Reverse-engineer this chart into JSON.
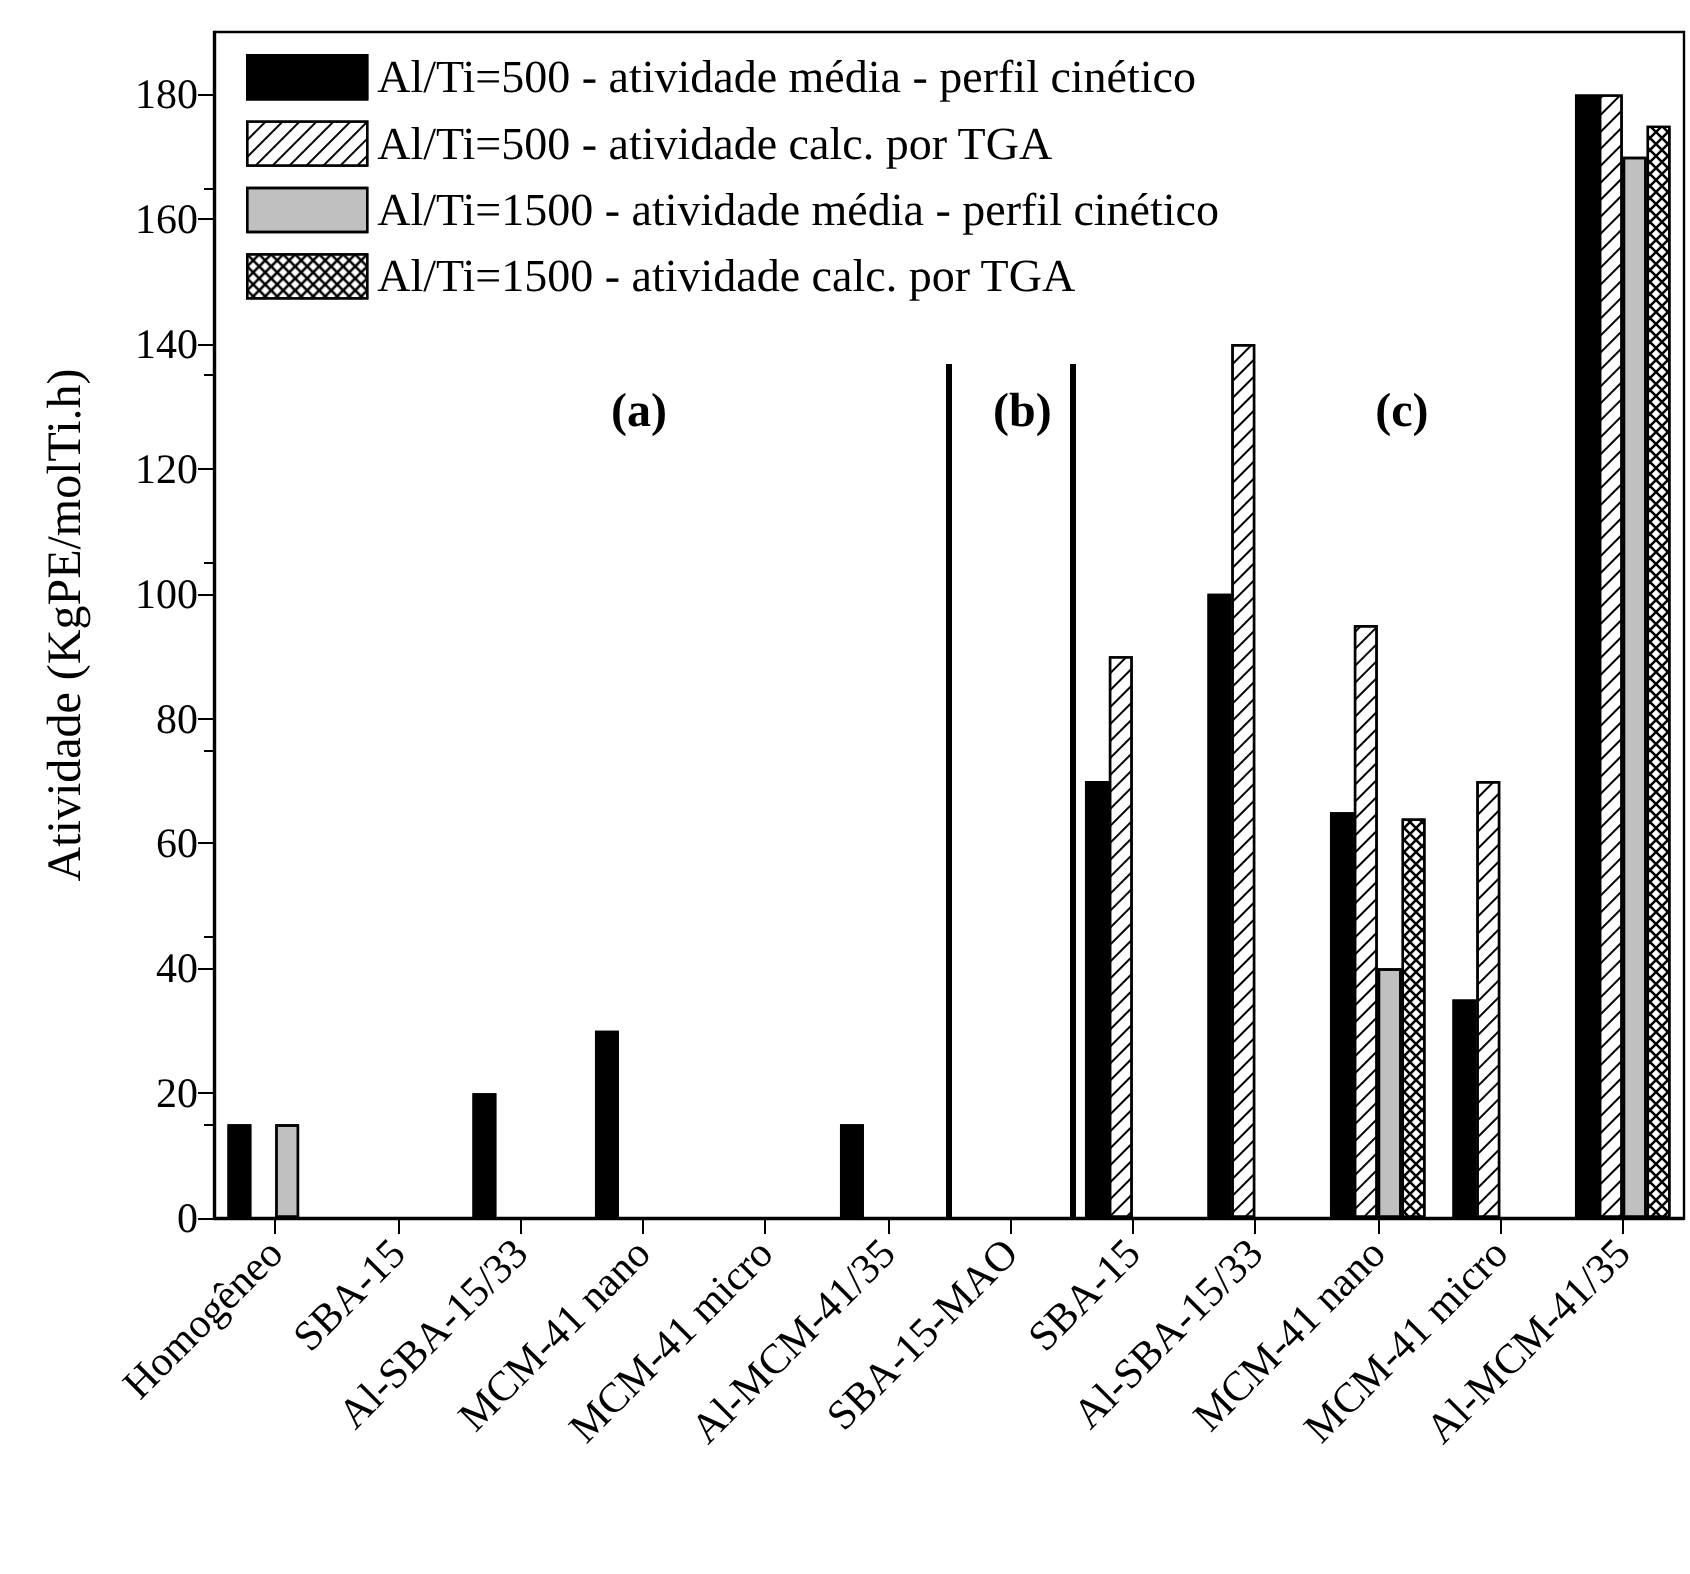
{
  "chart_data": {
    "type": "bar",
    "ylabel": "Atividade (KgPE/molTi.h)",
    "categories": [
      "Homogêneo",
      "SBA-15",
      "Al-SBA-15/33",
      "MCM-41 nano",
      "MCM-41 micro",
      "Al-MCM-41/35",
      "SBA-15-MAO",
      "SBA-15",
      "Al-SBA-15/33",
      "MCM-41 nano",
      "MCM-41 micro",
      "Al-MCM-41/35"
    ],
    "series": [
      {
        "name": "Al/Ti=500 - atividade média - perfil cinético",
        "color": "#000000",
        "values": [
          15,
          null,
          20,
          30,
          null,
          15,
          null,
          70,
          100,
          65,
          35,
          180
        ]
      },
      {
        "name": "Al/Ti=500 - atividade calc. por TGA",
        "color": "#ffffff",
        "values": [
          null,
          null,
          null,
          null,
          null,
          null,
          null,
          90,
          140,
          95,
          70,
          180
        ]
      },
      {
        "name": "Al/Ti=1500 - atividade média - perfil cinético",
        "color": "#c0c0c0",
        "values": [
          15,
          null,
          null,
          null,
          null,
          null,
          null,
          null,
          null,
          40,
          null,
          170
        ]
      },
      {
        "name": "Al/Ti=1500 - atividade calc. por TGA",
        "color": "#ffffff",
        "values": [
          null,
          null,
          null,
          null,
          null,
          null,
          null,
          null,
          null,
          64,
          null,
          175
        ]
      }
    ],
    "ylim": [
      0,
      190
    ],
    "yticks": [
      0,
      20,
      40,
      60,
      80,
      100,
      120,
      140,
      160,
      180
    ],
    "annotations": [
      "(a)",
      "(b)",
      "(c)"
    ],
    "grid": false,
    "legend": "top left"
  }
}
